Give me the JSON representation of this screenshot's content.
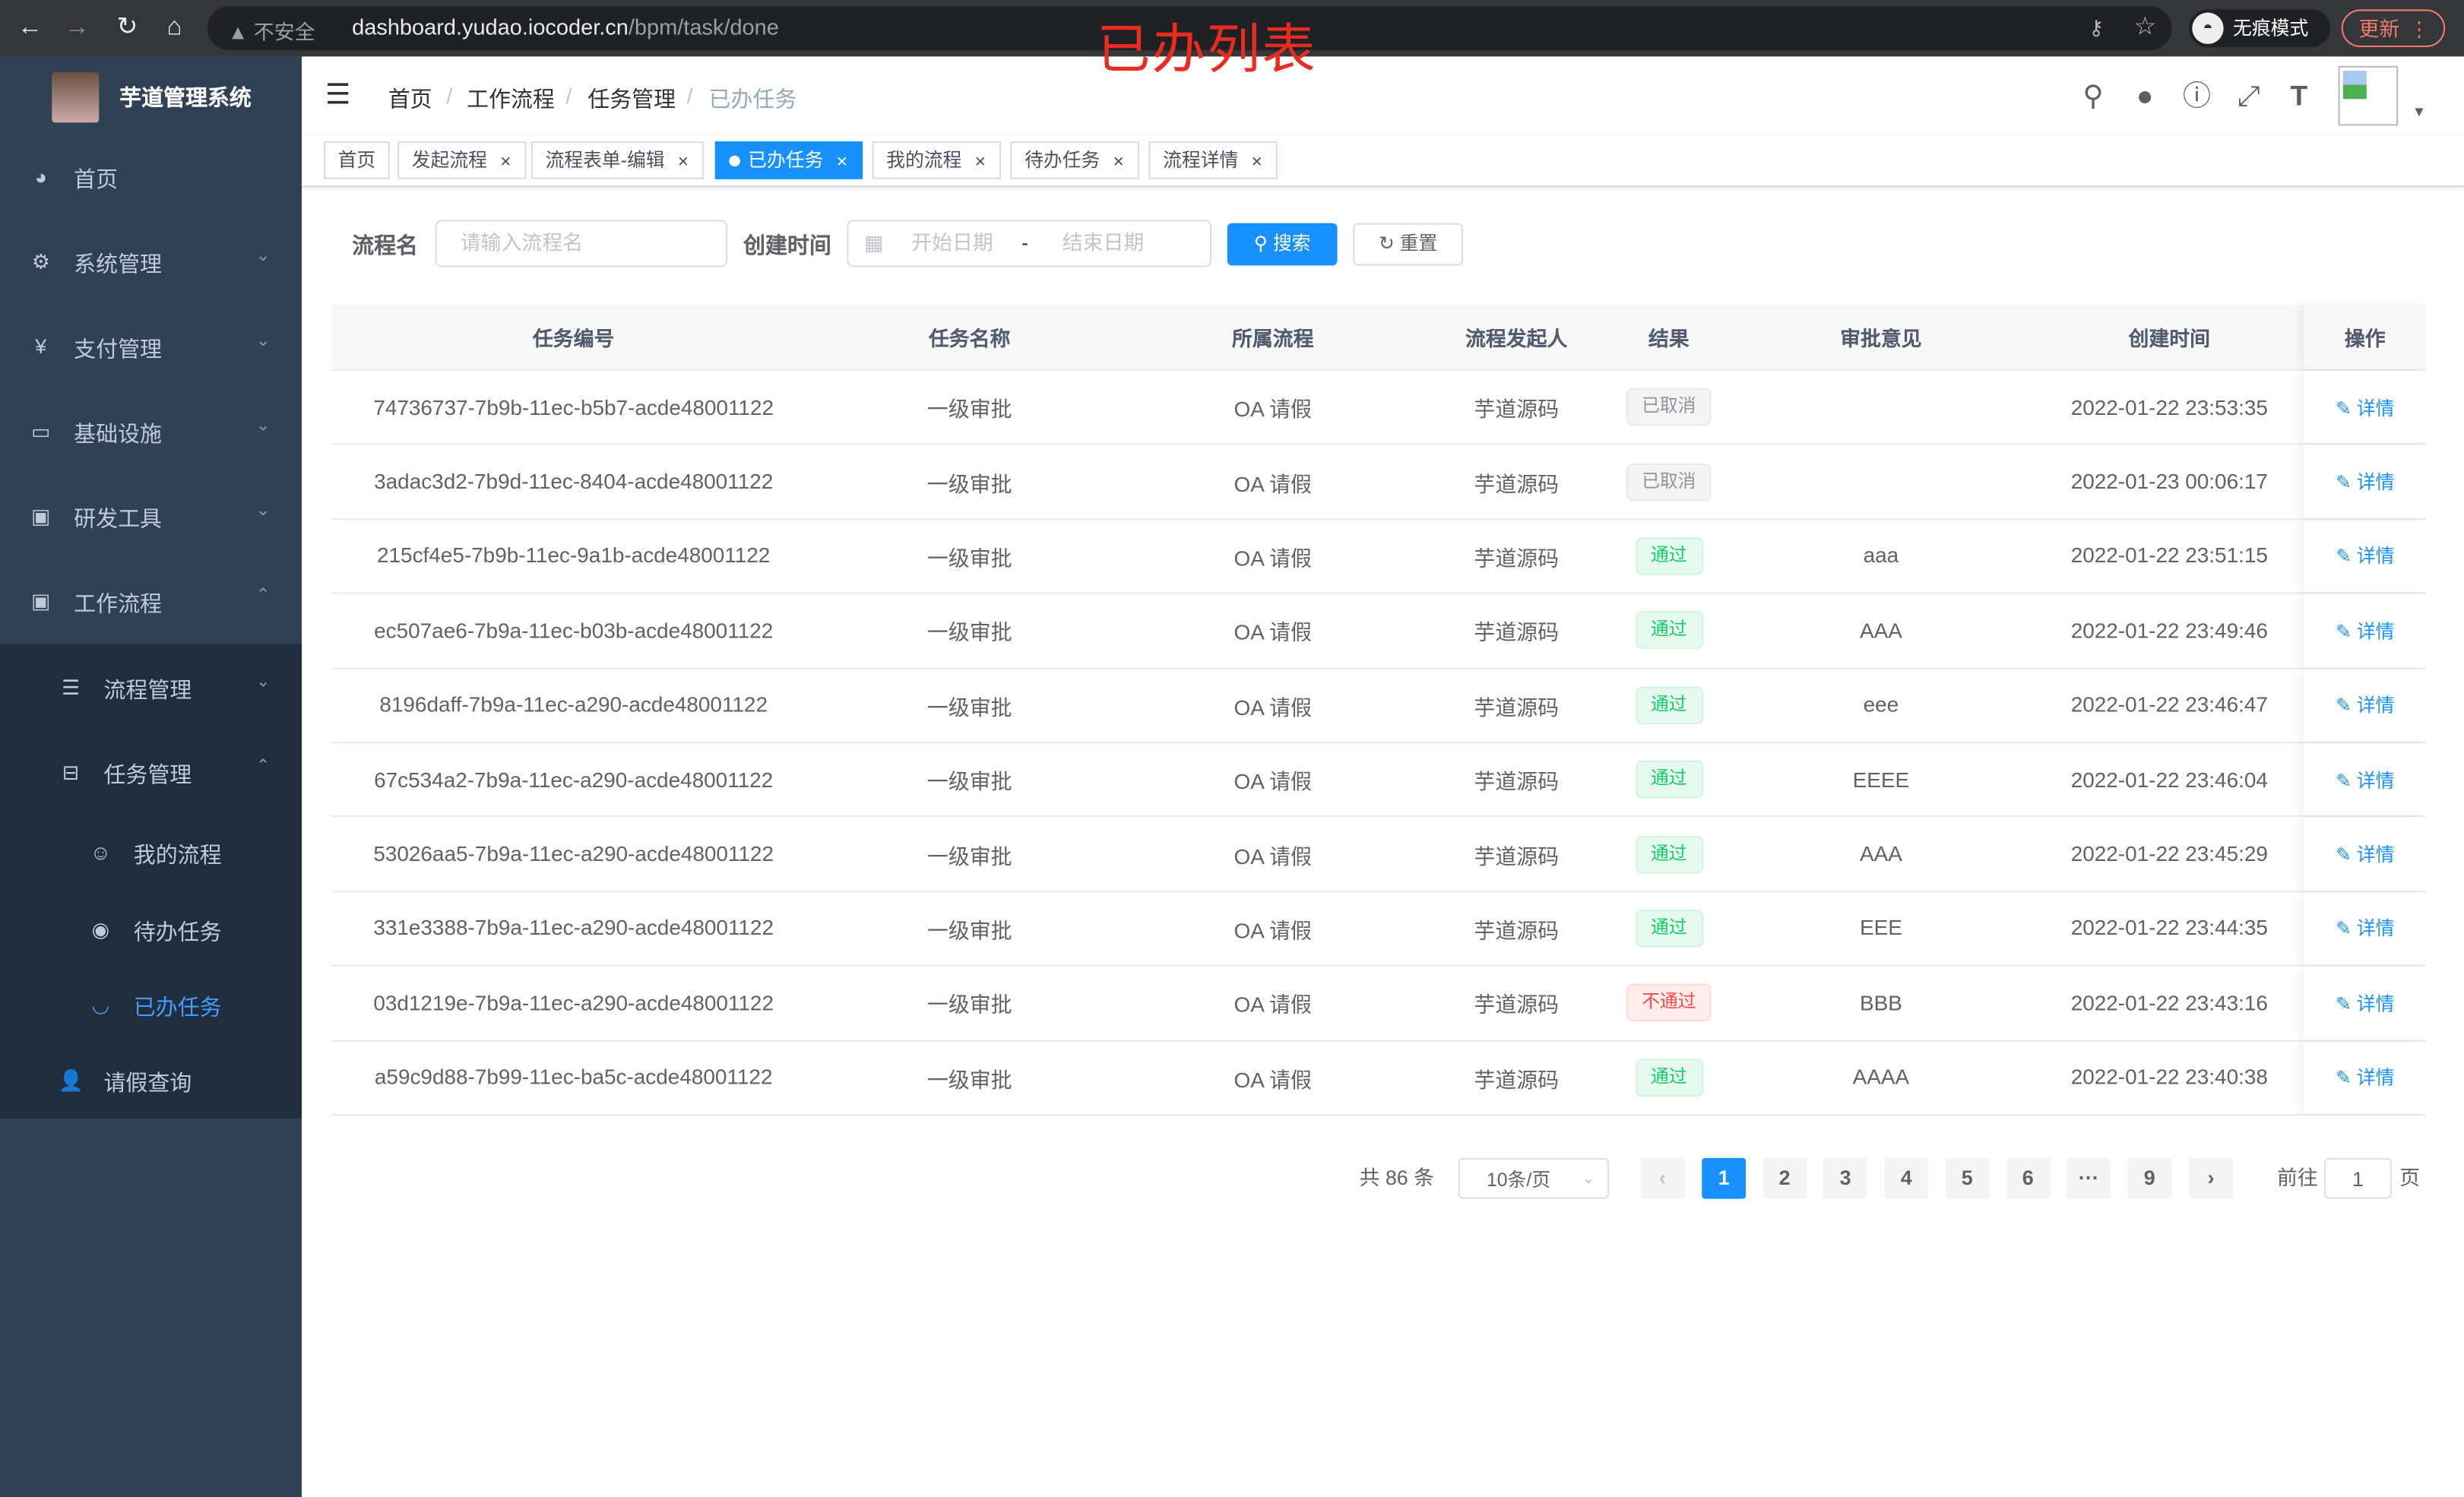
{
  "browser": {
    "insecure_label": "不安全",
    "url_host": "dashboard.yudao.iocoder.cn",
    "url_path": "/bpm/task/done",
    "incognito_label": "无痕模式",
    "update_label": "更新"
  },
  "overlay_title": "已办列表",
  "sidebar": {
    "app_title": "芋道管理系统",
    "items": [
      {
        "label": "首页",
        "icon": "dashboard-icon",
        "glyph": "◕",
        "arrow": ""
      },
      {
        "label": "系统管理",
        "icon": "gear-icon",
        "glyph": "⚙",
        "arrow": "⌄"
      },
      {
        "label": "支付管理",
        "icon": "yen-icon",
        "glyph": "¥",
        "arrow": "⌄"
      },
      {
        "label": "基础设施",
        "icon": "monitor-icon",
        "glyph": "▭",
        "arrow": "⌄"
      },
      {
        "label": "研发工具",
        "icon": "toolbox-icon",
        "glyph": "▣",
        "arrow": "⌄"
      },
      {
        "label": "工作流程",
        "icon": "toolbox-icon",
        "glyph": "▣",
        "arrow": "⌃"
      },
      {
        "label": "流程管理",
        "icon": "list-icon",
        "glyph": "☰",
        "arrow": "⌄"
      },
      {
        "label": "任务管理",
        "icon": "tree-icon",
        "glyph": "⊟",
        "arrow": "⌃"
      },
      {
        "label": "我的流程",
        "icon": "people-icon",
        "glyph": "☺",
        "arrow": ""
      },
      {
        "label": "待办任务",
        "icon": "eye-icon",
        "glyph": "◉",
        "arrow": ""
      },
      {
        "label": "已办任务",
        "icon": "eye-closed-icon",
        "glyph": "◡",
        "arrow": ""
      },
      {
        "label": "请假查询",
        "icon": "user-icon",
        "glyph": "👤",
        "arrow": ""
      }
    ],
    "active_item": "已办任务",
    "active_color": "#409eff"
  },
  "breadcrumb": [
    "首页",
    "工作流程",
    "任务管理",
    "已办任务"
  ],
  "tags": [
    {
      "label": "首页",
      "closable": false,
      "active": false
    },
    {
      "label": "发起流程",
      "closable": true,
      "active": false
    },
    {
      "label": "流程表单-编辑",
      "closable": true,
      "active": false
    },
    {
      "label": "已办任务",
      "closable": true,
      "active": true
    },
    {
      "label": "我的流程",
      "closable": true,
      "active": false
    },
    {
      "label": "待办任务",
      "closable": true,
      "active": false
    },
    {
      "label": "流程详情",
      "closable": true,
      "active": false
    }
  ],
  "search": {
    "name_label": "流程名",
    "name_placeholder": "请输入流程名",
    "time_label": "创建时间",
    "start_placeholder": "开始日期",
    "range_sep": "-",
    "end_placeholder": "结束日期",
    "search_label": "搜索",
    "reset_label": "重置"
  },
  "table": {
    "columns": [
      "任务编号",
      "任务名称",
      "所属流程",
      "流程发起人",
      "结果",
      "审批意见",
      "创建时间",
      "操作"
    ],
    "rows": [
      {
        "id": "74736737-7b9b-11ec-b5b7-acde48001122",
        "name": "一级审批",
        "process": "OA 请假",
        "starter": "芋道源码",
        "result": "已取消",
        "result_type": "cancel",
        "comment": "",
        "time": "2022-01-22 23:53:35",
        "action": "详情"
      },
      {
        "id": "3adac3d2-7b9d-11ec-8404-acde48001122",
        "name": "一级审批",
        "process": "OA 请假",
        "starter": "芋道源码",
        "result": "已取消",
        "result_type": "cancel",
        "comment": "",
        "time": "2022-01-23 00:06:17",
        "action": "详情"
      },
      {
        "id": "215cf4e5-7b9b-11ec-9a1b-acde48001122",
        "name": "一级审批",
        "process": "OA 请假",
        "starter": "芋道源码",
        "result": "通过",
        "result_type": "pass",
        "comment": "aaa",
        "time": "2022-01-22 23:51:15",
        "action": "详情"
      },
      {
        "id": "ec507ae6-7b9a-11ec-b03b-acde48001122",
        "name": "一级审批",
        "process": "OA 请假",
        "starter": "芋道源码",
        "result": "通过",
        "result_type": "pass",
        "comment": "AAA",
        "time": "2022-01-22 23:49:46",
        "action": "详情"
      },
      {
        "id": "8196daff-7b9a-11ec-a290-acde48001122",
        "name": "一级审批",
        "process": "OA 请假",
        "starter": "芋道源码",
        "result": "通过",
        "result_type": "pass",
        "comment": "eee",
        "time": "2022-01-22 23:46:47",
        "action": "详情"
      },
      {
        "id": "67c534a2-7b9a-11ec-a290-acde48001122",
        "name": "一级审批",
        "process": "OA 请假",
        "starter": "芋道源码",
        "result": "通过",
        "result_type": "pass",
        "comment": "EEEE",
        "time": "2022-01-22 23:46:04",
        "action": "详情"
      },
      {
        "id": "53026aa5-7b9a-11ec-a290-acde48001122",
        "name": "一级审批",
        "process": "OA 请假",
        "starter": "芋道源码",
        "result": "通过",
        "result_type": "pass",
        "comment": "AAA",
        "time": "2022-01-22 23:45:29",
        "action": "详情"
      },
      {
        "id": "331e3388-7b9a-11ec-a290-acde48001122",
        "name": "一级审批",
        "process": "OA 请假",
        "starter": "芋道源码",
        "result": "通过",
        "result_type": "pass",
        "comment": "EEE",
        "time": "2022-01-22 23:44:35",
        "action": "详情"
      },
      {
        "id": "03d1219e-7b9a-11ec-a290-acde48001122",
        "name": "一级审批",
        "process": "OA 请假",
        "starter": "芋道源码",
        "result": "不通过",
        "result_type": "reject",
        "comment": "BBB",
        "time": "2022-01-22 23:43:16",
        "action": "详情"
      },
      {
        "id": "a59c9d88-7b99-11ec-ba5c-acde48001122",
        "name": "一级审批",
        "process": "OA 请假",
        "starter": "芋道源码",
        "result": "通过",
        "result_type": "pass",
        "comment": "AAAA",
        "time": "2022-01-22 23:40:38",
        "action": "详情"
      }
    ]
  },
  "result_colors": {
    "cancel": {
      "bg": "#f4f4f5",
      "border": "#e9e9eb",
      "text": "#909399"
    },
    "pass": {
      "bg": "#e7faf0",
      "border": "#d0f5e0",
      "text": "#13ce66"
    },
    "reject": {
      "bg": "#ffeded",
      "border": "#ffdbdb",
      "text": "#ff4949"
    }
  },
  "pagination": {
    "total_label": "共 86 条",
    "page_size": "10条/页",
    "pages": [
      "1",
      "2",
      "3",
      "4",
      "5",
      "6",
      "···",
      "9"
    ],
    "current_page": "1",
    "goto_label": "前往",
    "goto_value": "1",
    "page_suffix": "页"
  },
  "accent_color": "#1890ff"
}
